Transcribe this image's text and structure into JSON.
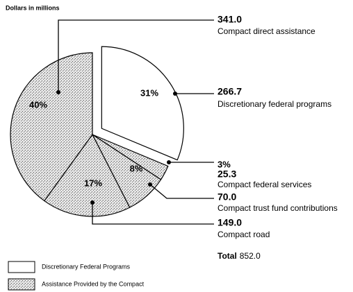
{
  "chart_data": {
    "type": "pie",
    "subtitle": "Dollars in millions",
    "categories": [
      "Discretionary federal programs",
      "Compact federal services",
      "Compact trust fund contributions",
      "Compact road",
      "Compact direct assistance"
    ],
    "values": [
      266.7,
      25.3,
      70,
      149,
      341
    ],
    "value_labels": [
      "266.7",
      "25.3",
      "70.0",
      "149.0",
      "341.0"
    ],
    "percent_labels": [
      "31%",
      "3%",
      "8%",
      "17%",
      "40%"
    ],
    "slice_legend": [
      0,
      1,
      1,
      1,
      1
    ],
    "exploded": [
      true,
      false,
      false,
      false,
      false
    ],
    "legend": [
      {
        "name": "Discretionary Federal Programs",
        "fill": "white"
      },
      {
        "name": "Assistance Provided by the Compact",
        "fill": "stipple"
      }
    ],
    "total_label": "Total",
    "total": {
      "value": 852,
      "label": "852.0"
    }
  }
}
